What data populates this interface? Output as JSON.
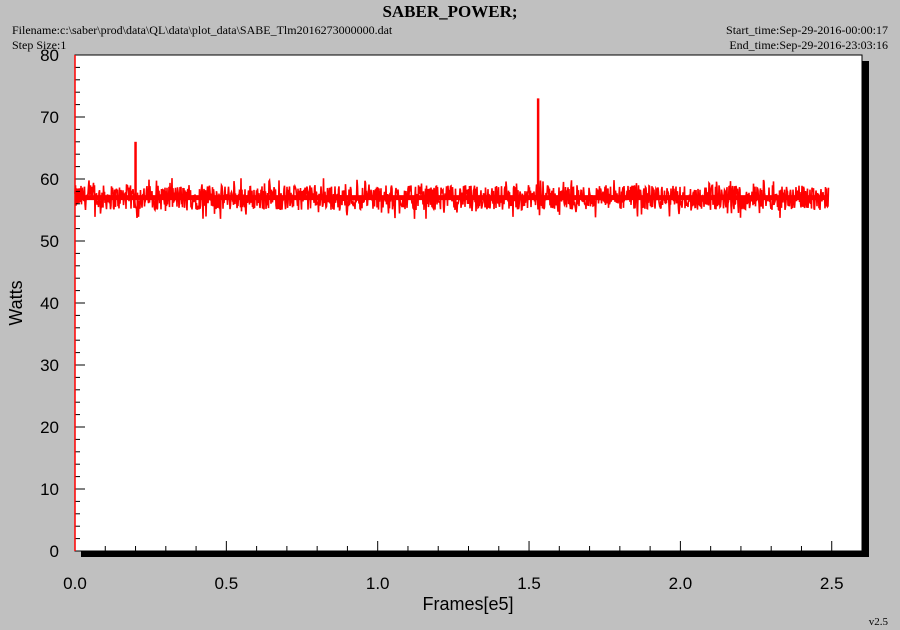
{
  "header": {
    "title": "SABER_POWER;",
    "filename": "Filename:c:\\saber\\prod\\data\\QL\\data\\plot_data\\SABE_Tlm2016273000000.dat",
    "step_size": "Step Size:1",
    "start_time": "Start_time:Sep-29-2016-00:00:17",
    "end_time": "End_time:Sep-29-2016-23:03:16",
    "version": "v2.5"
  },
  "colors": {
    "background": "#c0c0c0",
    "plot_area": "#ffffff",
    "series": "#ff0000",
    "axis": "#000000"
  },
  "chart_data": {
    "type": "line",
    "xlabel": "Frames[e5]",
    "ylabel": "Watts",
    "xlim": [
      0.0,
      2.6
    ],
    "ylim": [
      0,
      80
    ],
    "x_ticks": [
      "0.0",
      "0.5",
      "1.0",
      "1.5",
      "2.0",
      "2.5"
    ],
    "y_ticks": [
      "0",
      "10",
      "20",
      "30",
      "40",
      "50",
      "60",
      "70",
      "80"
    ],
    "grid": false,
    "series": [
      {
        "name": "",
        "color": "#ff0000",
        "x_range": [
          0.0,
          2.49
        ],
        "band": [
          55,
          59
        ],
        "min": 53.5,
        "mean": 57,
        "spikes": [
          {
            "x": 0.2,
            "y": 66
          },
          {
            "x": 1.53,
            "y": 73
          }
        ]
      }
    ]
  }
}
